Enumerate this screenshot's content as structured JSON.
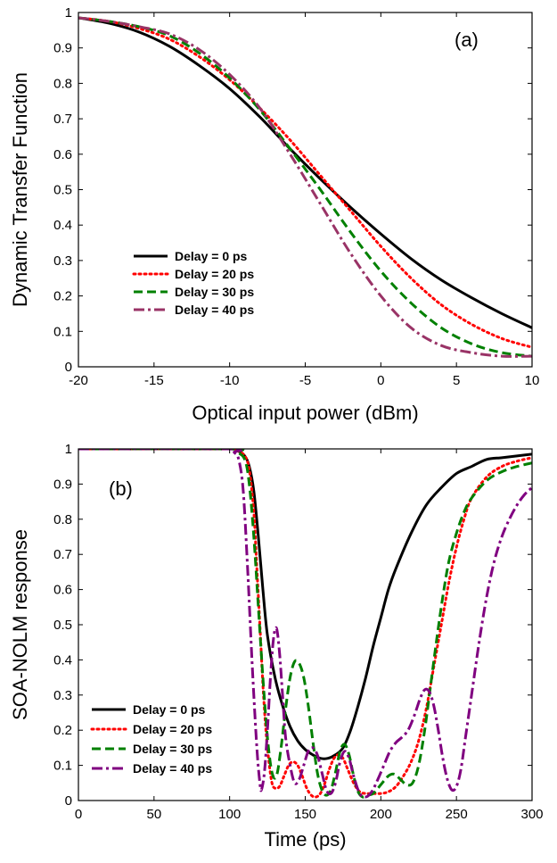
{
  "chart_data": [
    {
      "type": "line",
      "panel_label": "(a)",
      "xlabel": "Optical input power (dBm)",
      "ylabel": "Dynamic Transfer Function",
      "xlim": [
        -20,
        10
      ],
      "ylim": [
        0,
        1
      ],
      "xticks": [
        "-20",
        "-15",
        "-10",
        "-5",
        "0",
        "5",
        "10"
      ],
      "yticks": [
        "0",
        "0.1",
        "0.2",
        "0.3",
        "0.4",
        "0.5",
        "0.6",
        "0.7",
        "0.8",
        "0.9",
        "1"
      ],
      "grid": false,
      "legend_position": "lower-left",
      "x": [
        -20,
        -18,
        -16,
        -14,
        -12,
        -10,
        -8,
        -6,
        -4,
        -2,
        0,
        2,
        4,
        6,
        8,
        10
      ],
      "series": [
        {
          "name": "Delay = 0 ps",
          "color": "#000000",
          "dash": "solid",
          "values": [
            0.985,
            0.97,
            0.945,
            0.905,
            0.85,
            0.785,
            0.705,
            0.615,
            0.53,
            0.45,
            0.375,
            0.305,
            0.245,
            0.195,
            0.15,
            0.11
          ]
        },
        {
          "name": "Delay = 20 ps",
          "color": "#ff0000",
          "dash": "dot",
          "values": [
            0.985,
            0.975,
            0.955,
            0.925,
            0.875,
            0.81,
            0.73,
            0.64,
            0.54,
            0.44,
            0.34,
            0.25,
            0.175,
            0.12,
            0.08,
            0.055
          ]
        },
        {
          "name": "Delay = 30 ps",
          "color": "#008000",
          "dash": "dash",
          "values": [
            0.985,
            0.975,
            0.96,
            0.935,
            0.885,
            0.815,
            0.725,
            0.615,
            0.5,
            0.38,
            0.27,
            0.18,
            0.11,
            0.065,
            0.04,
            0.03
          ]
        },
        {
          "name": "Delay = 40 ps",
          "color": "#993366",
          "dash": "dashdot",
          "values": [
            0.985,
            0.975,
            0.96,
            0.94,
            0.895,
            0.825,
            0.73,
            0.6,
            0.46,
            0.32,
            0.2,
            0.11,
            0.06,
            0.04,
            0.03,
            0.03
          ]
        }
      ]
    },
    {
      "type": "line",
      "panel_label": "(b)",
      "xlabel": "Time (ps)",
      "ylabel": "SOA-NOLM response",
      "xlim": [
        0,
        300
      ],
      "ylim": [
        0,
        1
      ],
      "xticks": [
        "0",
        "50",
        "100",
        "150",
        "200",
        "250",
        "300"
      ],
      "yticks": [
        "0",
        "0.1",
        "0.2",
        "0.3",
        "0.4",
        "0.5",
        "0.6",
        "0.7",
        "0.8",
        "0.9",
        "1"
      ],
      "grid": false,
      "legend_position": "lower-left",
      "series": [
        {
          "name": "Delay = 0 ps",
          "color": "#000000",
          "dash": "solid",
          "points": [
            [
              0,
              1
            ],
            [
              100,
              1
            ],
            [
              105,
              0.995
            ],
            [
              110,
              0.98
            ],
            [
              113,
              0.95
            ],
            [
              116,
              0.88
            ],
            [
              119,
              0.75
            ],
            [
              122,
              0.6
            ],
            [
              125,
              0.47
            ],
            [
              130,
              0.35
            ],
            [
              135,
              0.27
            ],
            [
              140,
              0.21
            ],
            [
              145,
              0.17
            ],
            [
              150,
              0.145
            ],
            [
              155,
              0.13
            ],
            [
              160,
              0.12
            ],
            [
              165,
              0.12
            ],
            [
              170,
              0.13
            ],
            [
              175,
              0.15
            ],
            [
              180,
              0.2
            ],
            [
              185,
              0.27
            ],
            [
              190,
              0.35
            ],
            [
              195,
              0.44
            ],
            [
              200,
              0.52
            ],
            [
              205,
              0.6
            ],
            [
              210,
              0.66
            ],
            [
              220,
              0.76
            ],
            [
              230,
              0.84
            ],
            [
              240,
              0.89
            ],
            [
              250,
              0.93
            ],
            [
              260,
              0.95
            ],
            [
              270,
              0.97
            ],
            [
              280,
              0.975
            ],
            [
              290,
              0.98
            ],
            [
              300,
              0.985
            ]
          ]
        },
        {
          "name": "Delay = 20 ps",
          "color": "#ff0000",
          "dash": "dot",
          "points": [
            [
              0,
              1
            ],
            [
              100,
              1
            ],
            [
              105,
              0.995
            ],
            [
              110,
              0.98
            ],
            [
              113,
              0.94
            ],
            [
              116,
              0.82
            ],
            [
              118,
              0.66
            ],
            [
              120,
              0.5
            ],
            [
              122,
              0.33
            ],
            [
              124,
              0.2
            ],
            [
              126,
              0.11
            ],
            [
              128,
              0.05
            ],
            [
              130,
              0.035
            ],
            [
              133,
              0.04
            ],
            [
              136,
              0.07
            ],
            [
              139,
              0.1
            ],
            [
              142,
              0.11
            ],
            [
              145,
              0.1
            ],
            [
              148,
              0.07
            ],
            [
              151,
              0.035
            ],
            [
              154,
              0.015
            ],
            [
              157,
              0.01
            ],
            [
              160,
              0.02
            ],
            [
              163,
              0.05
            ],
            [
              166,
              0.09
            ],
            [
              169,
              0.12
            ],
            [
              172,
              0.13
            ],
            [
              175,
              0.12
            ],
            [
              178,
              0.09
            ],
            [
              182,
              0.05
            ],
            [
              186,
              0.025
            ],
            [
              190,
              0.02
            ],
            [
              194,
              0.02
            ],
            [
              200,
              0.02
            ],
            [
              205,
              0.025
            ],
            [
              210,
              0.04
            ],
            [
              215,
              0.07
            ],
            [
              220,
              0.11
            ],
            [
              225,
              0.17
            ],
            [
              230,
              0.26
            ],
            [
              235,
              0.38
            ],
            [
              240,
              0.5
            ],
            [
              245,
              0.62
            ],
            [
              250,
              0.72
            ],
            [
              255,
              0.8
            ],
            [
              260,
              0.86
            ],
            [
              270,
              0.92
            ],
            [
              280,
              0.95
            ],
            [
              290,
              0.965
            ],
            [
              300,
              0.975
            ]
          ]
        },
        {
          "name": "Delay = 30 ps",
          "color": "#008000",
          "dash": "dash",
          "points": [
            [
              0,
              1
            ],
            [
              100,
              1
            ],
            [
              105,
              0.99
            ],
            [
              110,
              0.97
            ],
            [
              113,
              0.9
            ],
            [
              116,
              0.75
            ],
            [
              119,
              0.55
            ],
            [
              122,
              0.35
            ],
            [
              125,
              0.18
            ],
            [
              128,
              0.08
            ],
            [
              131,
              0.07
            ],
            [
              134,
              0.15
            ],
            [
              137,
              0.26
            ],
            [
              140,
              0.35
            ],
            [
              143,
              0.395
            ],
            [
              146,
              0.39
            ],
            [
              149,
              0.35
            ],
            [
              152,
              0.27
            ],
            [
              155,
              0.17
            ],
            [
              158,
              0.08
            ],
            [
              161,
              0.03
            ],
            [
              164,
              0.015
            ],
            [
              167,
              0.03
            ],
            [
              170,
              0.08
            ],
            [
              173,
              0.14
            ],
            [
              176,
              0.16
            ],
            [
              179,
              0.13
            ],
            [
              182,
              0.07
            ],
            [
              185,
              0.025
            ],
            [
              188,
              0.01
            ],
            [
              191,
              0.015
            ],
            [
              195,
              0.02
            ],
            [
              200,
              0.045
            ],
            [
              205,
              0.07
            ],
            [
              209,
              0.075
            ],
            [
              213,
              0.06
            ],
            [
              217,
              0.045
            ],
            [
              221,
              0.05
            ],
            [
              225,
              0.1
            ],
            [
              229,
              0.2
            ],
            [
              233,
              0.33
            ],
            [
              237,
              0.46
            ],
            [
              241,
              0.58
            ],
            [
              245,
              0.68
            ],
            [
              250,
              0.76
            ],
            [
              255,
              0.82
            ],
            [
              260,
              0.86
            ],
            [
              270,
              0.91
            ],
            [
              280,
              0.935
            ],
            [
              290,
              0.95
            ],
            [
              300,
              0.96
            ]
          ]
        },
        {
          "name": "Delay = 40 ps",
          "color": "#800080",
          "dash": "dashdot",
          "points": [
            [
              0,
              1
            ],
            [
              100,
              1
            ],
            [
              103,
              0.99
            ],
            [
              106,
              0.97
            ],
            [
              109,
              0.88
            ],
            [
              112,
              0.65
            ],
            [
              115,
              0.38
            ],
            [
              118,
              0.15
            ],
            [
              120,
              0.05
            ],
            [
              121,
              0.03
            ],
            [
              123,
              0.08
            ],
            [
              125,
              0.2
            ],
            [
              127,
              0.35
            ],
            [
              129,
              0.46
            ],
            [
              131,
              0.49
            ],
            [
              133,
              0.42
            ],
            [
              135,
              0.3
            ],
            [
              137,
              0.18
            ],
            [
              140,
              0.1
            ],
            [
              143,
              0.05
            ],
            [
              146,
              0.06
            ],
            [
              149,
              0.1
            ],
            [
              152,
              0.14
            ],
            [
              155,
              0.15
            ],
            [
              158,
              0.13
            ],
            [
              161,
              0.08
            ],
            [
              164,
              0.03
            ],
            [
              167,
              0.02
            ],
            [
              170,
              0.05
            ],
            [
              173,
              0.11
            ],
            [
              176,
              0.14
            ],
            [
              179,
              0.12
            ],
            [
              182,
              0.07
            ],
            [
              186,
              0.02
            ],
            [
              190,
              0.01
            ],
            [
              194,
              0.025
            ],
            [
              198,
              0.06
            ],
            [
              202,
              0.1
            ],
            [
              206,
              0.14
            ],
            [
              210,
              0.165
            ],
            [
              214,
              0.18
            ],
            [
              218,
              0.2
            ],
            [
              222,
              0.24
            ],
            [
              226,
              0.29
            ],
            [
              229,
              0.315
            ],
            [
              232,
              0.31
            ],
            [
              235,
              0.27
            ],
            [
              238,
              0.2
            ],
            [
              241,
              0.12
            ],
            [
              244,
              0.06
            ],
            [
              247,
              0.03
            ],
            [
              250,
              0.04
            ],
            [
              253,
              0.09
            ],
            [
              256,
              0.18
            ],
            [
              260,
              0.3
            ],
            [
              265,
              0.45
            ],
            [
              270,
              0.58
            ],
            [
              275,
              0.68
            ],
            [
              280,
              0.75
            ],
            [
              285,
              0.8
            ],
            [
              290,
              0.84
            ],
            [
              295,
              0.87
            ],
            [
              300,
              0.89
            ]
          ]
        }
      ]
    }
  ]
}
